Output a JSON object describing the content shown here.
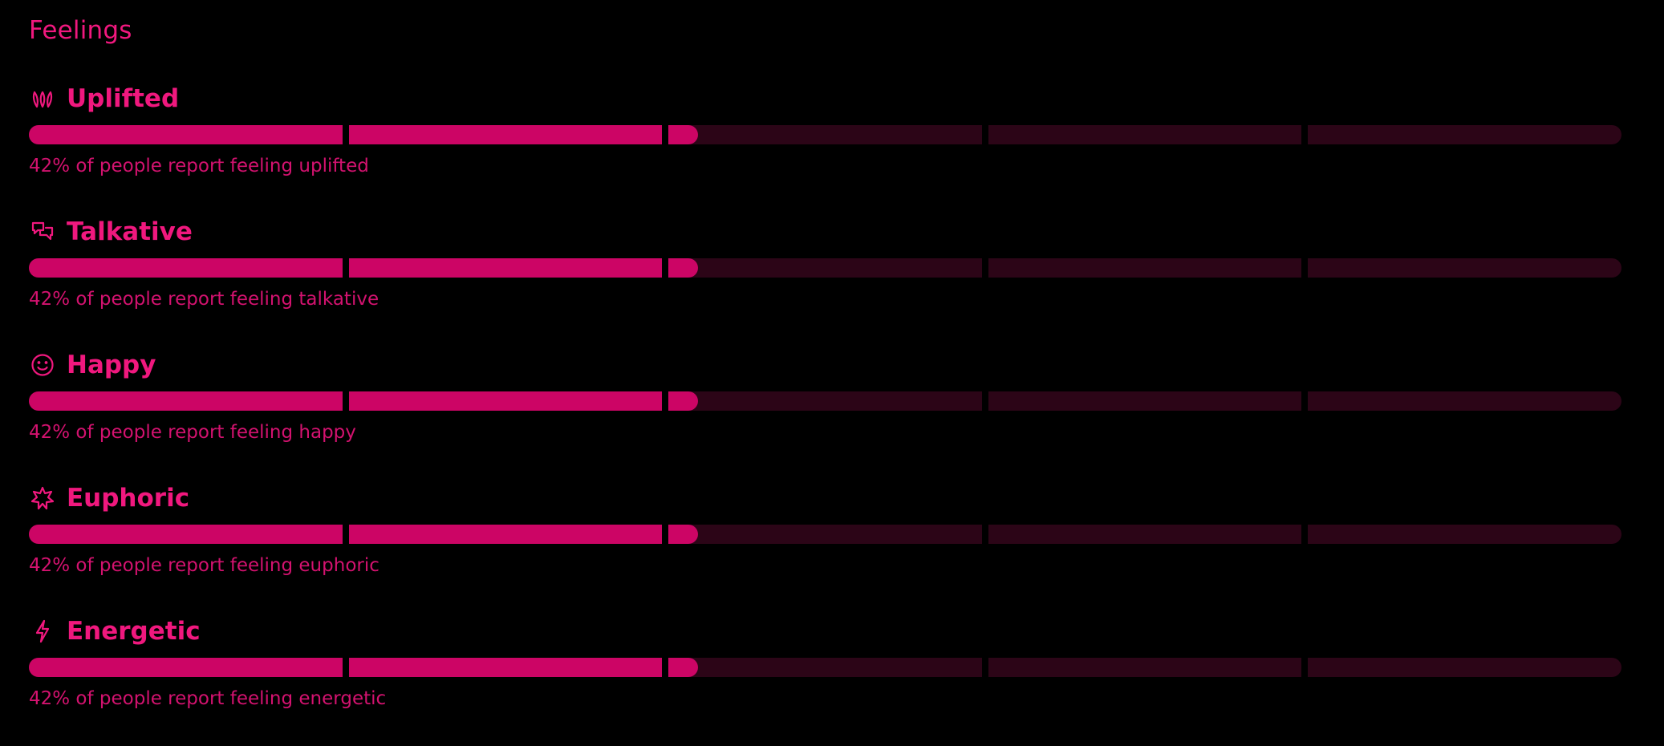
{
  "section": {
    "title": "Feelings"
  },
  "colors": {
    "accent": "#f0187e",
    "bar_fill": "#cc0565",
    "bar_track": "#2c0517",
    "background": "#000000"
  },
  "feelings": [
    {
      "label": "Uplifted",
      "icon": "uplifted-sprout-icon",
      "percent": 42,
      "caption": "42% of people report feeling uplifted"
    },
    {
      "label": "Talkative",
      "icon": "speech-bubbles-icon",
      "percent": 42,
      "caption": "42% of people report feeling talkative"
    },
    {
      "label": "Happy",
      "icon": "smiley-icon",
      "percent": 42,
      "caption": "42% of people report feeling happy"
    },
    {
      "label": "Euphoric",
      "icon": "starburst-icon",
      "percent": 42,
      "caption": "42% of people report feeling euphoric"
    },
    {
      "label": "Energetic",
      "icon": "lightning-bolt-icon",
      "percent": 42,
      "caption": "42% of people report feeling energetic"
    }
  ]
}
